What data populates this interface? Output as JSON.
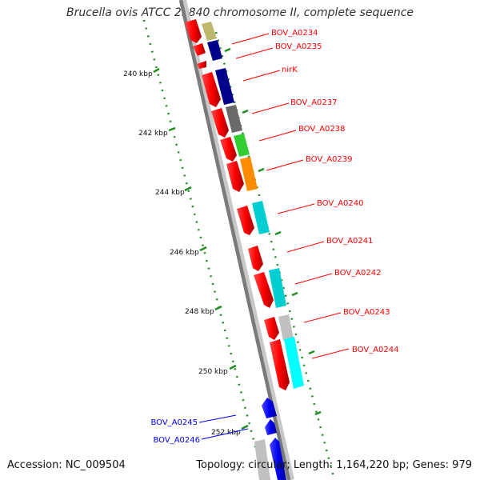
{
  "header": {
    "title": "Brucella ovis ATCC 25840 chromosome II, complete sequence"
  },
  "footer": {
    "accession": "Accession: NC_009504",
    "stats": "Topology: circular; Length: 1,164,220 bp; Genes: 979"
  },
  "scale": {
    "labels": [
      "240 kbp",
      "242 kbp",
      "244 kbp",
      "246 kbp",
      "248 kbp",
      "250 kbp",
      "252 kbp"
    ]
  },
  "genes": {
    "forward_strand": [
      {
        "label": "BOV_A0234",
        "color": "#ff0000"
      },
      {
        "label": "BOV_A0235",
        "color": "#ff0000"
      },
      {
        "label": "nirK",
        "color": "#ff0000"
      },
      {
        "label": "BOV_A0237",
        "color": "#ff0000"
      },
      {
        "label": "BOV_A0238",
        "color": "#ff0000"
      },
      {
        "label": "BOV_A0239",
        "color": "#ff0000"
      },
      {
        "label": "BOV_A0240",
        "color": "#ff0000"
      },
      {
        "label": "BOV_A0241",
        "color": "#ff0000"
      },
      {
        "label": "BOV_A0242",
        "color": "#ff0000"
      },
      {
        "label": "BOV_A0243",
        "color": "#ff0000"
      },
      {
        "label": "BOV_A0244",
        "color": "#ff0000"
      }
    ],
    "reverse_strand": [
      {
        "label": "BOV_A0245",
        "color": "#0000ee"
      },
      {
        "label": "BOV_A0246",
        "color": "#0000ee"
      }
    ]
  },
  "cog_colors": [
    "#bdb76b",
    "#00008b",
    "#696969",
    "#32cd32",
    "#ff8c00",
    "#00ced1",
    "#00ffff",
    "#c0c0c0"
  ],
  "backbone_color": "#808080",
  "tick_color": "#228b22"
}
